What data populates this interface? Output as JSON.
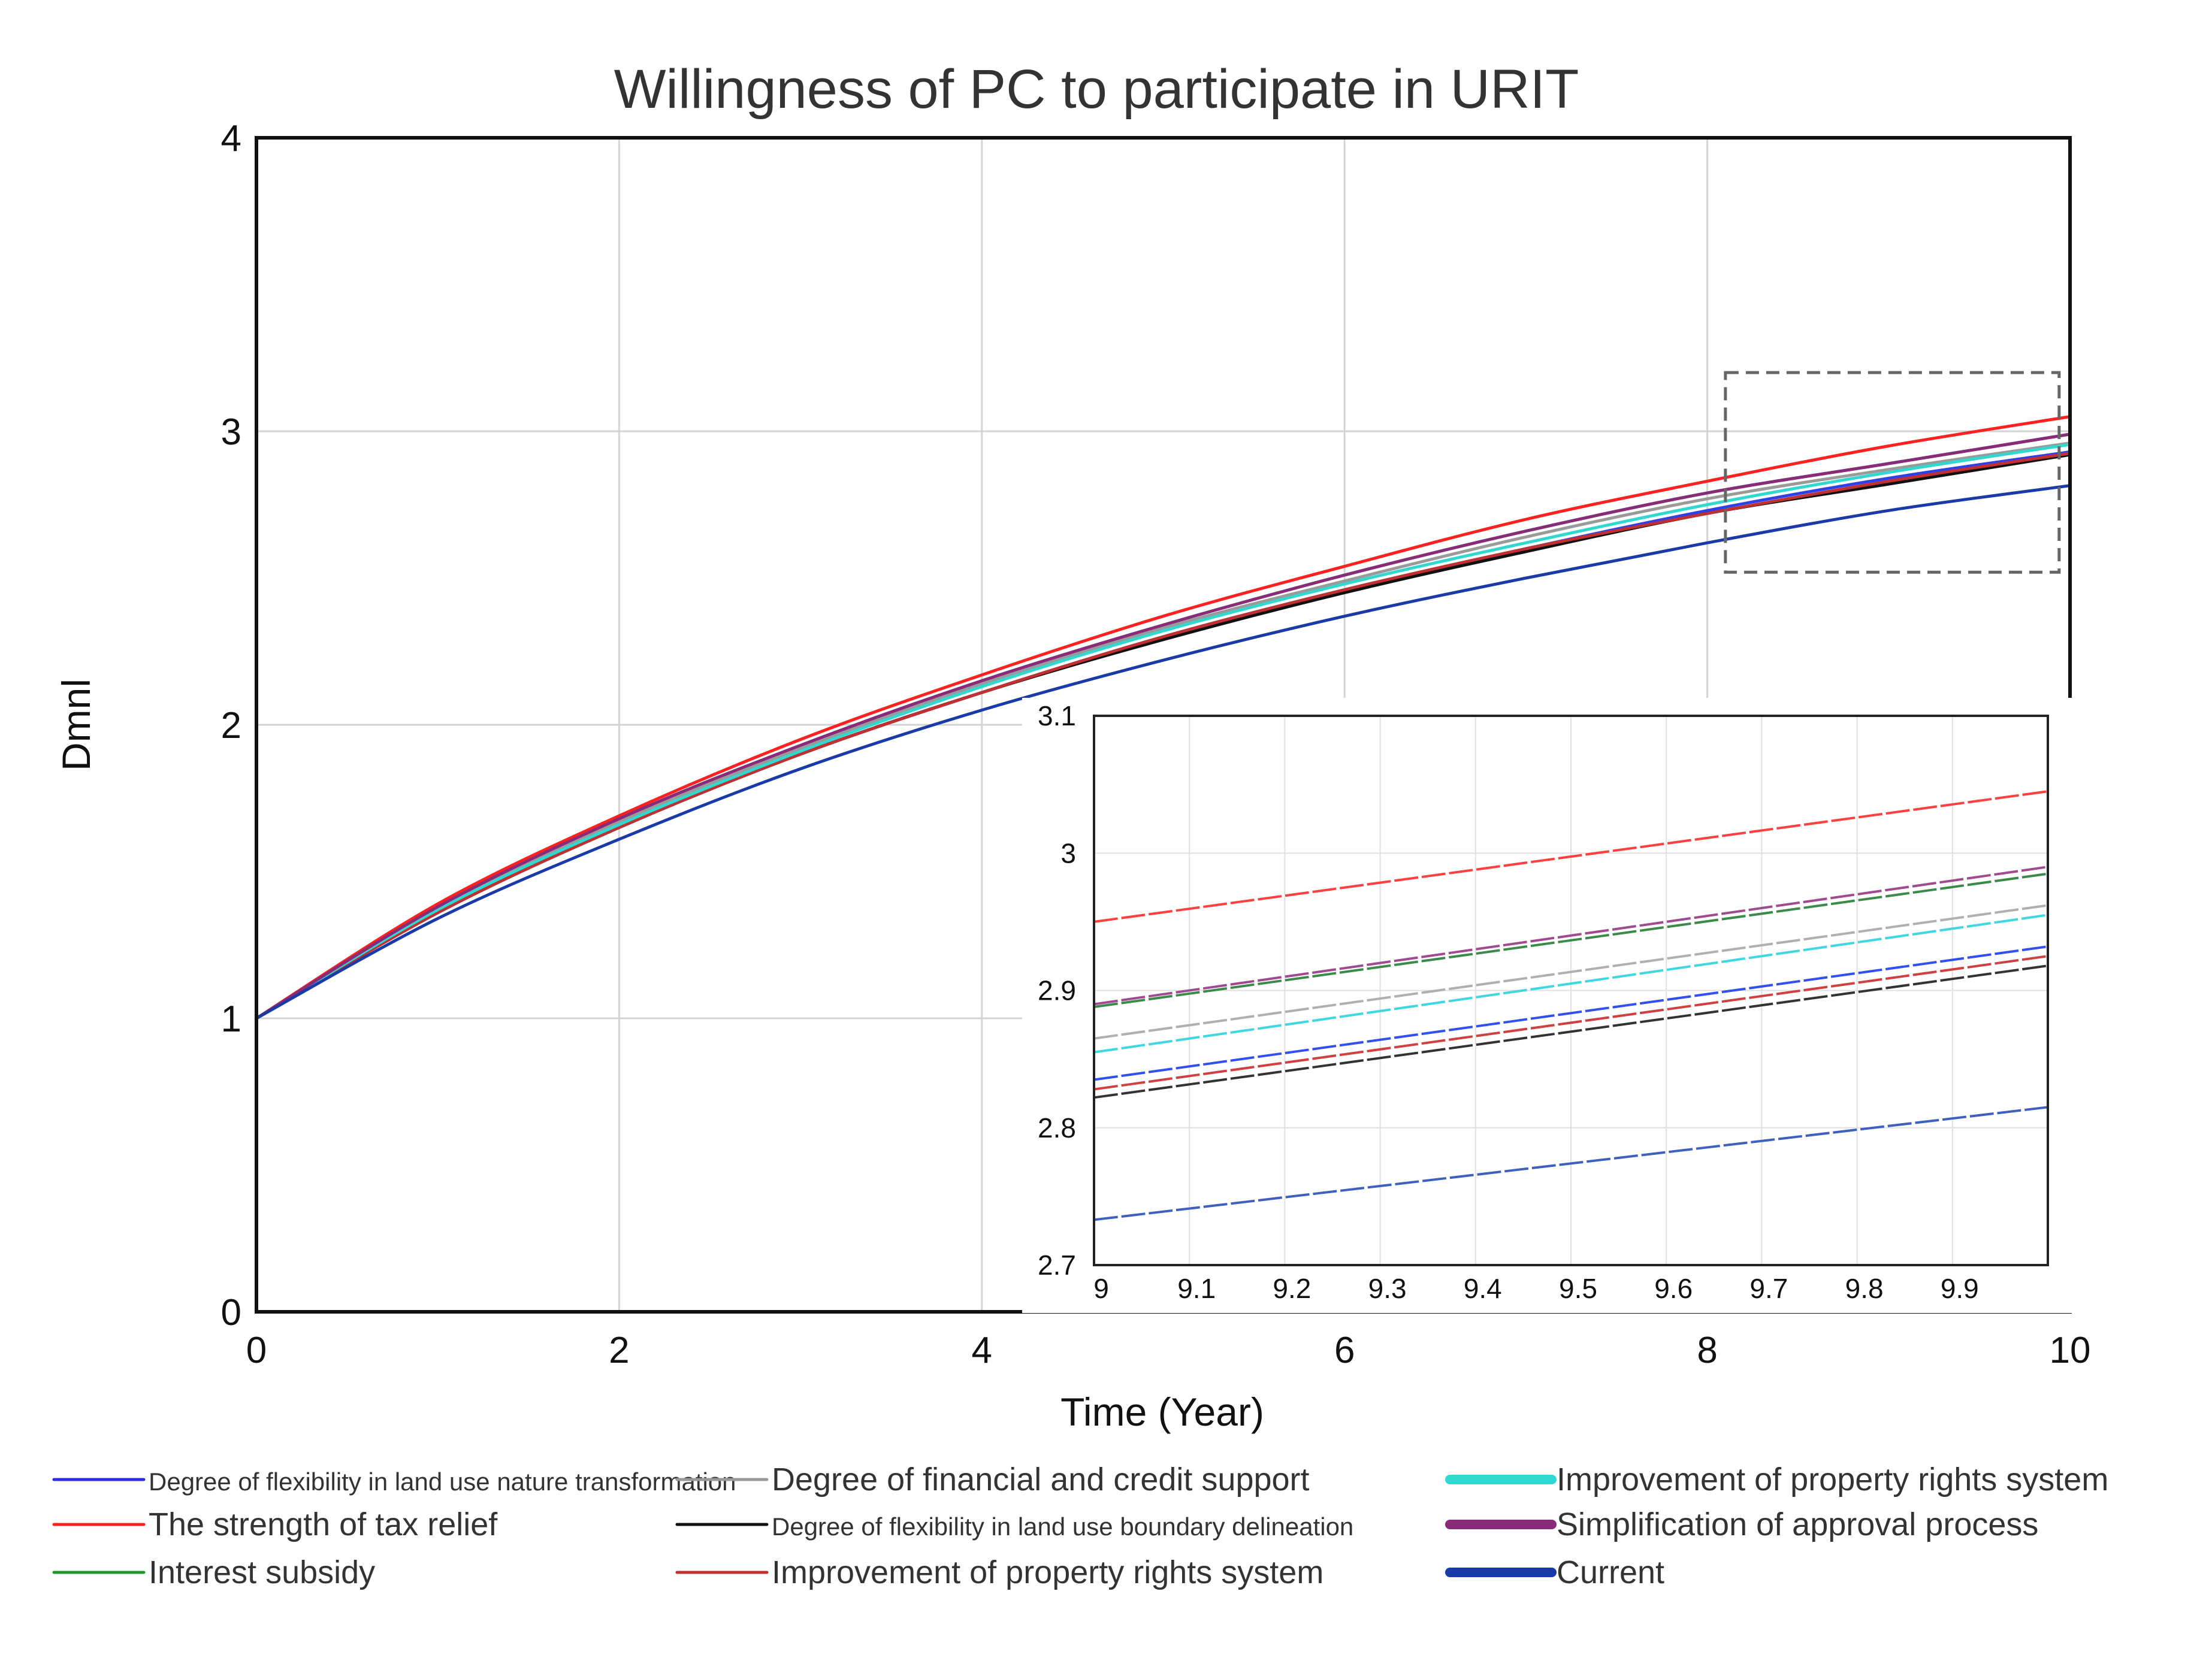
{
  "chart_data": [
    {
      "type": "line",
      "title": "Willingness of PC to participate in URIT",
      "xlabel": "Time (Year)",
      "ylabel": "Dmnl",
      "xlim": [
        0,
        10
      ],
      "ylim": [
        0,
        4
      ],
      "x_ticks": [
        "0",
        "2",
        "4",
        "6",
        "8",
        "10"
      ],
      "y_ticks": [
        "0",
        "1",
        "2",
        "3",
        "4"
      ],
      "grid": true,
      "x": [
        0,
        1,
        2,
        3,
        4,
        5,
        6,
        7,
        8,
        9,
        10
      ],
      "series": [
        {
          "name": "Degree of flexibility in land use nature transformation",
          "color": "#3040e8",
          "values": [
            1.0,
            1.36,
            1.65,
            1.9,
            2.11,
            2.3,
            2.46,
            2.6,
            2.73,
            2.84,
            2.93
          ]
        },
        {
          "name": "The strength of tax relief",
          "color": "#ff2020",
          "values": [
            1.0,
            1.39,
            1.69,
            1.95,
            2.17,
            2.37,
            2.54,
            2.7,
            2.83,
            2.95,
            3.05
          ]
        },
        {
          "name": "Interest subsidy",
          "color": "#1f9a2a",
          "values": [
            1.0,
            1.38,
            1.68,
            1.93,
            2.15,
            2.34,
            2.51,
            2.66,
            2.79,
            2.89,
            2.99
          ]
        },
        {
          "name": "Degree of financial and credit support",
          "color": "#9a9a9a",
          "values": [
            1.0,
            1.37,
            1.67,
            1.92,
            2.14,
            2.33,
            2.49,
            2.64,
            2.77,
            2.87,
            2.96
          ]
        },
        {
          "name": "Degree of flexibility in land use boundary delineation",
          "color": "#111111",
          "values": [
            1.0,
            1.36,
            1.65,
            1.9,
            2.11,
            2.29,
            2.45,
            2.59,
            2.72,
            2.82,
            2.92
          ]
        },
        {
          "name": "Improvement of property rights system",
          "color": "#c03030",
          "values": [
            1.0,
            1.36,
            1.65,
            1.9,
            2.11,
            2.3,
            2.46,
            2.6,
            2.72,
            2.83,
            2.925
          ]
        },
        {
          "name": "Improvement of property rights system",
          "color": "#30d8d0",
          "values": [
            1.0,
            1.37,
            1.66,
            1.91,
            2.13,
            2.32,
            2.48,
            2.62,
            2.75,
            2.86,
            2.955
          ]
        },
        {
          "name": "Simplification of approval process",
          "color": "#8a2a7a",
          "values": [
            1.0,
            1.38,
            1.68,
            1.93,
            2.15,
            2.34,
            2.51,
            2.66,
            2.79,
            2.89,
            2.99
          ]
        },
        {
          "name": "Current",
          "color": "#1a3aa8",
          "values": [
            1.0,
            1.34,
            1.61,
            1.85,
            2.05,
            2.22,
            2.37,
            2.5,
            2.62,
            2.73,
            2.815
          ]
        }
      ]
    },
    {
      "type": "line",
      "title": "",
      "xlim": [
        9,
        10
      ],
      "ylim": [
        2.7,
        3.1
      ],
      "x_ticks": [
        "9",
        "9.1",
        "9.2",
        "9.3",
        "9.4",
        "9.5",
        "9.6",
        "9.7",
        "9.8",
        "9.9"
      ],
      "y_ticks": [
        "2.7",
        "2.8",
        "2.9",
        "3",
        "3.1"
      ],
      "grid": true,
      "x": [
        9,
        10
      ],
      "series": [
        {
          "name": "The strength of tax relief",
          "color": "#ff4040",
          "values": [
            2.95,
            3.045
          ]
        },
        {
          "name": "Simplification of approval process",
          "color": "#a04a90",
          "values": [
            2.89,
            2.99
          ]
        },
        {
          "name": "Interest subsidy",
          "color": "#3a8a4a",
          "values": [
            2.888,
            2.985
          ]
        },
        {
          "name": "Degree of financial and credit support",
          "color": "#b0b0b0",
          "values": [
            2.865,
            2.962
          ]
        },
        {
          "name": "Improvement of property rights system",
          "color": "#40d8e0",
          "values": [
            2.855,
            2.955
          ]
        },
        {
          "name": "Degree of flexibility in land use nature transformation",
          "color": "#3050f0",
          "values": [
            2.835,
            2.932
          ]
        },
        {
          "name": "Improvement of property rights system",
          "color": "#d04040",
          "values": [
            2.828,
            2.925
          ]
        },
        {
          "name": "Degree of flexibility in land use boundary delineation",
          "color": "#333333",
          "values": [
            2.822,
            2.918
          ]
        },
        {
          "name": "Current",
          "color": "#4060c0",
          "values": [
            2.733,
            2.815
          ]
        }
      ]
    }
  ],
  "legend": {
    "columns": [
      [
        {
          "label": "Degree of flexibility in land use nature transformation",
          "color": "#2a2ae8"
        },
        {
          "label": "The strength of tax relief",
          "color": "#ff2020"
        },
        {
          "label": "Interest subsidy",
          "color": "#1f9a2a"
        }
      ],
      [
        {
          "label": "Degree of financial and credit support",
          "color": "#9a9a9a"
        },
        {
          "label": "Degree of flexibility in land use boundary delineation",
          "color": "#111111"
        },
        {
          "label": "Improvement of property rights system",
          "color": "#c03030"
        }
      ],
      [
        {
          "label": "Improvement of property rights system",
          "color": "#30d8d0"
        },
        {
          "label": "Simplification of approval process",
          "color": "#8a2a7a"
        },
        {
          "label": "Current",
          "color": "#1a3aa8"
        }
      ]
    ]
  }
}
